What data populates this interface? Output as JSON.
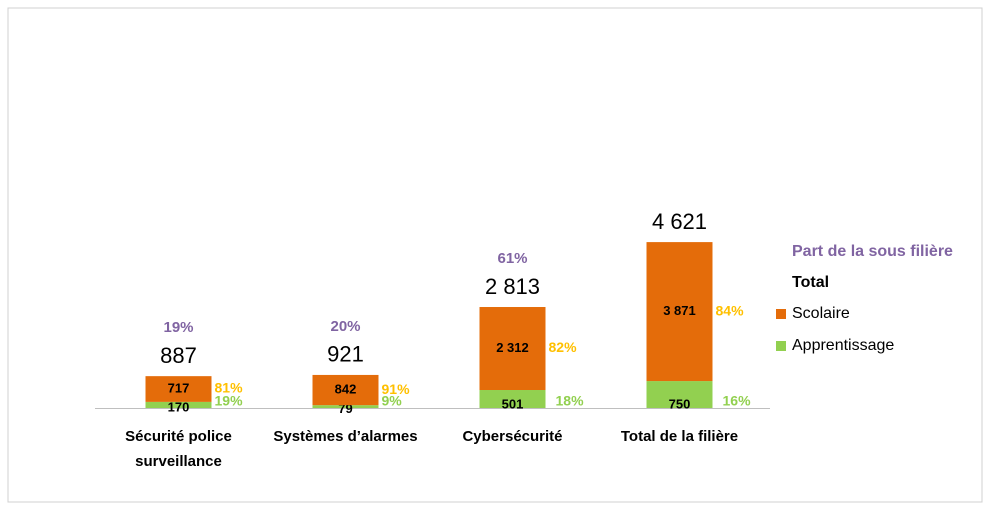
{
  "chart_data": {
    "type": "stacked_bar",
    "categories": [
      [
        "Sécurité police",
        "surveillance"
      ],
      [
        "Systèmes d’alarmes"
      ],
      [
        "Cybersécurité"
      ],
      [
        "Total de la filière"
      ]
    ],
    "series": [
      {
        "name": "Apprentissage",
        "color": "#92d050",
        "values": [
          170,
          79,
          501,
          750
        ],
        "value_labels": [
          "170",
          "79",
          "501",
          "750"
        ],
        "percent": {
          "color": "#92d050",
          "values": [
            19,
            9,
            18,
            16
          ],
          "value_labels": [
            "19%",
            "9%",
            "18%",
            "16%"
          ]
        }
      },
      {
        "name": "Scolaire",
        "color": "#e46c0a",
        "values": [
          717,
          842,
          2312,
          3871
        ],
        "value_labels": [
          "717",
          "842",
          "2 312",
          "3 871"
        ],
        "percent": {
          "color": "#ffc000",
          "values": [
            81,
            91,
            82,
            84
          ],
          "value_labels": [
            "81%",
            "91%",
            "82%",
            "84%"
          ]
        }
      }
    ],
    "totals": {
      "name": "Total",
      "color": "#000000",
      "values": [
        887,
        921,
        2813,
        4621
      ],
      "value_labels": [
        "887",
        "921",
        "2 813",
        "4 621"
      ]
    },
    "shares": {
      "name": "Part de la sous filière",
      "color": "#8064a2",
      "values": [
        19,
        20,
        61
      ],
      "value_labels": [
        "19%",
        "20%",
        "61%"
      ]
    }
  }
}
